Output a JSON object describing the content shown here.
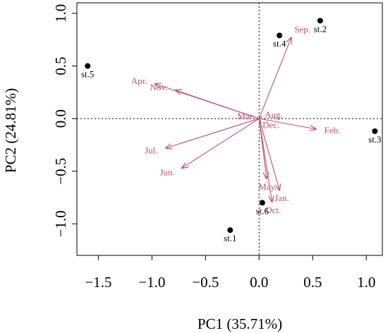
{
  "chart_data": {
    "type": "scatter",
    "subtype": "pca-biplot",
    "xlabel": "PC1 (35.71%)",
    "ylabel": "PC2 (24.81%)",
    "xlim": [
      -1.7,
      1.15
    ],
    "ylim": [
      -1.3,
      1.1
    ],
    "xticks": [
      -1.5,
      -1.0,
      -0.5,
      0.0,
      0.5,
      1.0
    ],
    "xtick_labels": [
      "−1.5",
      "−1.0",
      "−0.5",
      "0.0",
      "0.5",
      "1.0"
    ],
    "yticks": [
      -1.0,
      -0.5,
      0.0,
      0.5,
      1.0
    ],
    "ytick_labels": [
      "−1.0",
      "−0.5",
      "0.0",
      "0.5",
      "1.0"
    ],
    "reference_lines": {
      "x": 0,
      "y": 0,
      "style": "dotted"
    },
    "point_color": "#000000",
    "arrow_color": "#c0506e",
    "points": [
      {
        "label": "st.1",
        "x": -0.27,
        "y": -1.06
      },
      {
        "label": "st.2",
        "x": 0.57,
        "y": 0.93
      },
      {
        "label": "st.3",
        "x": 1.08,
        "y": -0.12
      },
      {
        "label": "st.4",
        "x": 0.19,
        "y": 0.79
      },
      {
        "label": "st.5",
        "x": -1.6,
        "y": 0.5
      },
      {
        "label": "st.6",
        "x": 0.03,
        "y": -0.8
      }
    ],
    "arrows": [
      {
        "label": "Sep.",
        "x": 0.3,
        "y": 0.77
      },
      {
        "label": "Apr.",
        "x": -0.97,
        "y": 0.33
      },
      {
        "label": "Nov.",
        "x": -0.78,
        "y": 0.27
      },
      {
        "label": "Feb.",
        "x": 0.53,
        "y": -0.1
      },
      {
        "label": "Jul.",
        "x": -0.87,
        "y": -0.28
      },
      {
        "label": "Jun.",
        "x": -0.72,
        "y": -0.47
      },
      {
        "label": "Jan.",
        "x": 0.19,
        "y": -0.68
      },
      {
        "label": "Oct.",
        "x": 0.12,
        "y": -0.79
      },
      {
        "label": "May.",
        "x": 0.07,
        "y": -0.57
      },
      {
        "label": "Dec.",
        "x": 0.02,
        "y": -0.04
      },
      {
        "label": "Mar.",
        "x": -0.02,
        "y": 0.01
      },
      {
        "label": "Aug.",
        "x": 0.03,
        "y": 0.02
      }
    ]
  }
}
